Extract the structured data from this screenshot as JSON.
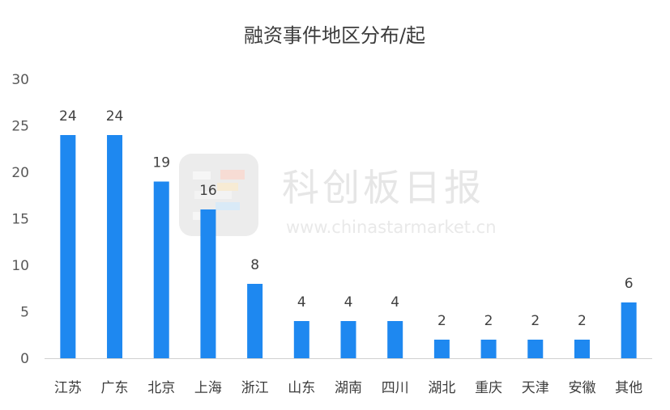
{
  "watermark": {
    "name": "科创板日报",
    "url": "www.chinastarmarket.cn"
  },
  "chart_data": {
    "type": "bar",
    "title": "融资事件地区分布/起",
    "xlabel": "",
    "ylabel": "",
    "categories": [
      "江苏",
      "广东",
      "北京",
      "上海",
      "浙江",
      "山东",
      "湖南",
      "四川",
      "湖北",
      "重庆",
      "天津",
      "安徽",
      "其他"
    ],
    "values": [
      24,
      24,
      19,
      16,
      8,
      4,
      4,
      4,
      2,
      2,
      2,
      2,
      6
    ],
    "ylim": [
      0,
      30
    ],
    "yticks": [
      0,
      5,
      10,
      15,
      20,
      25,
      30
    ],
    "grid": false,
    "legend": "none",
    "data_labels": true,
    "bar_color": "#1e88f0"
  }
}
